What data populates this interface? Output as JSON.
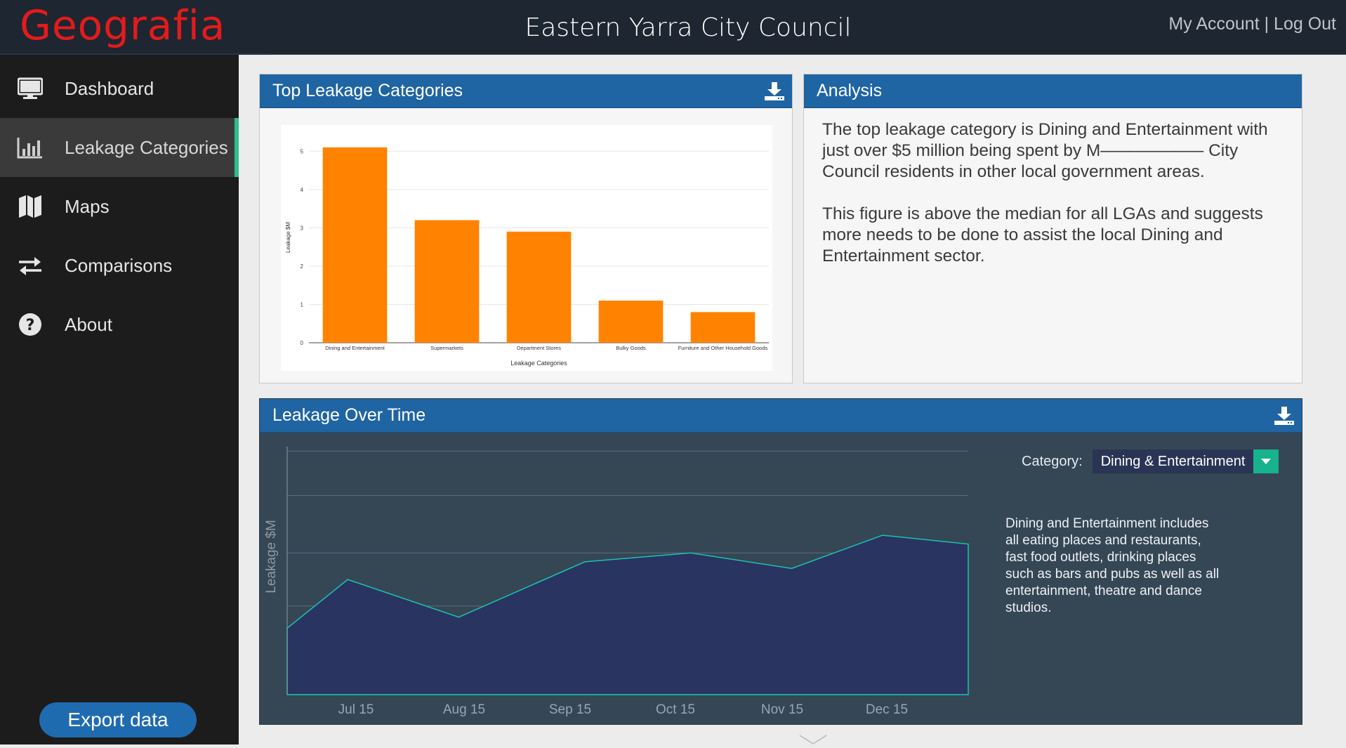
{
  "header": {
    "logo": "Geografia",
    "title": "Eastern Yarra  City Council",
    "my_account": "My Account",
    "separator": " | ",
    "log_out": "Log Out"
  },
  "sidebar": {
    "items": [
      {
        "label": "Dashboard",
        "icon": "monitor-icon",
        "active": false
      },
      {
        "label": "Leakage Categories",
        "icon": "bar-chart-icon",
        "active": true
      },
      {
        "label": "Maps",
        "icon": "map-icon",
        "active": false
      },
      {
        "label": "Comparisons",
        "icon": "arrows-exchange-icon",
        "active": false
      },
      {
        "label": "About",
        "icon": "question-circle-icon",
        "active": false
      }
    ],
    "export_label": "Export data"
  },
  "top_leakage": {
    "title": "Top Leakage Categories"
  },
  "analysis": {
    "title": "Analysis",
    "paragraph1": "The top leakage category is Dining and Entertainment with just over $5 million being spent by M—————— City Council residents in other local government areas.",
    "paragraph2": "This figure is above the median for all LGAs and suggests more needs to be done to assist the local Dining and Entertainment sector."
  },
  "leakage_time": {
    "title": "Leakage Over Time",
    "category_label": "Category:",
    "category_value": "Dining & Entertainment",
    "description": "Dining and Entertainment includes all eating places and restaurants, fast food outlets, drinking places such as bars and pubs as well as all entertainment, theatre and dance studios."
  },
  "colors": {
    "bar": "#ff8300",
    "header_bg": "#1d2631",
    "panel_head": "#1f64a3",
    "accent": "#2bbf8e",
    "area_fill": "#2a3461",
    "line": "#19c3b0"
  },
  "chart_data": [
    {
      "type": "bar",
      "categories": [
        "Dining and Entertainment",
        "Supermarkets",
        "Department Stores",
        "Bulky Goods",
        "Furniture and Other Household Goods"
      ],
      "values": [
        5.1,
        3.2,
        2.9,
        1.1,
        0.8
      ],
      "xlabel": "Leakage Categories",
      "ylabel": "Leakage $M",
      "ylim": [
        0,
        5.5
      ],
      "yticks": [
        0,
        1,
        2,
        3,
        4,
        5
      ],
      "grid": true
    },
    {
      "type": "area",
      "x": [
        "Jul 15",
        "Aug 15",
        "Sep 15",
        "Oct 15",
        "Nov 15",
        "Dec 15"
      ],
      "points": [
        {
          "x": 0.0,
          "y": 1.5
        },
        {
          "x": 0.6,
          "y": 2.6
        },
        {
          "x": 1.7,
          "y": 1.75
        },
        {
          "x": 2.95,
          "y": 3.0
        },
        {
          "x": 4.0,
          "y": 3.2
        },
        {
          "x": 5.0,
          "y": 2.85
        },
        {
          "x": 5.9,
          "y": 3.6
        },
        {
          "x": 6.75,
          "y": 3.4
        }
      ],
      "ylabel": "Leakage $M",
      "ylim": [
        0,
        5.6
      ],
      "xlim": [
        0,
        6.75
      ],
      "grid_lines": [
        1.0,
        2.0,
        3.2,
        4.5,
        5.5
      ],
      "grid": true
    }
  ]
}
